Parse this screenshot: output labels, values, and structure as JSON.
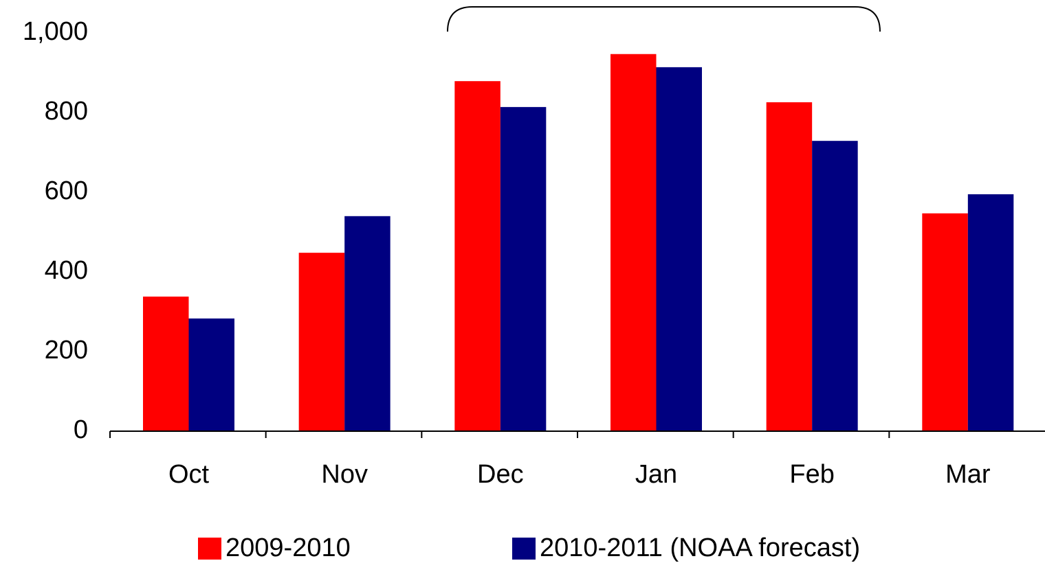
{
  "chart_data": {
    "type": "bar",
    "categories": [
      "Oct",
      "Nov",
      "Dec",
      "Jan",
      "Feb",
      "Mar"
    ],
    "series": [
      {
        "name": "2009-2010",
        "color": "#ff0000",
        "values": [
          338,
          448,
          879,
          947,
          826,
          547
        ]
      },
      {
        "name": "2010-2011 (NOAA forecast)",
        "color": "#000080",
        "values": [
          283,
          540,
          814,
          914,
          729,
          595
        ]
      }
    ],
    "ylim": [
      0,
      1000
    ],
    "yticks": [
      0,
      200,
      400,
      600,
      800,
      {
        "value": 1000,
        "label": "1,000"
      }
    ],
    "grid": false,
    "legend": "bottom"
  }
}
